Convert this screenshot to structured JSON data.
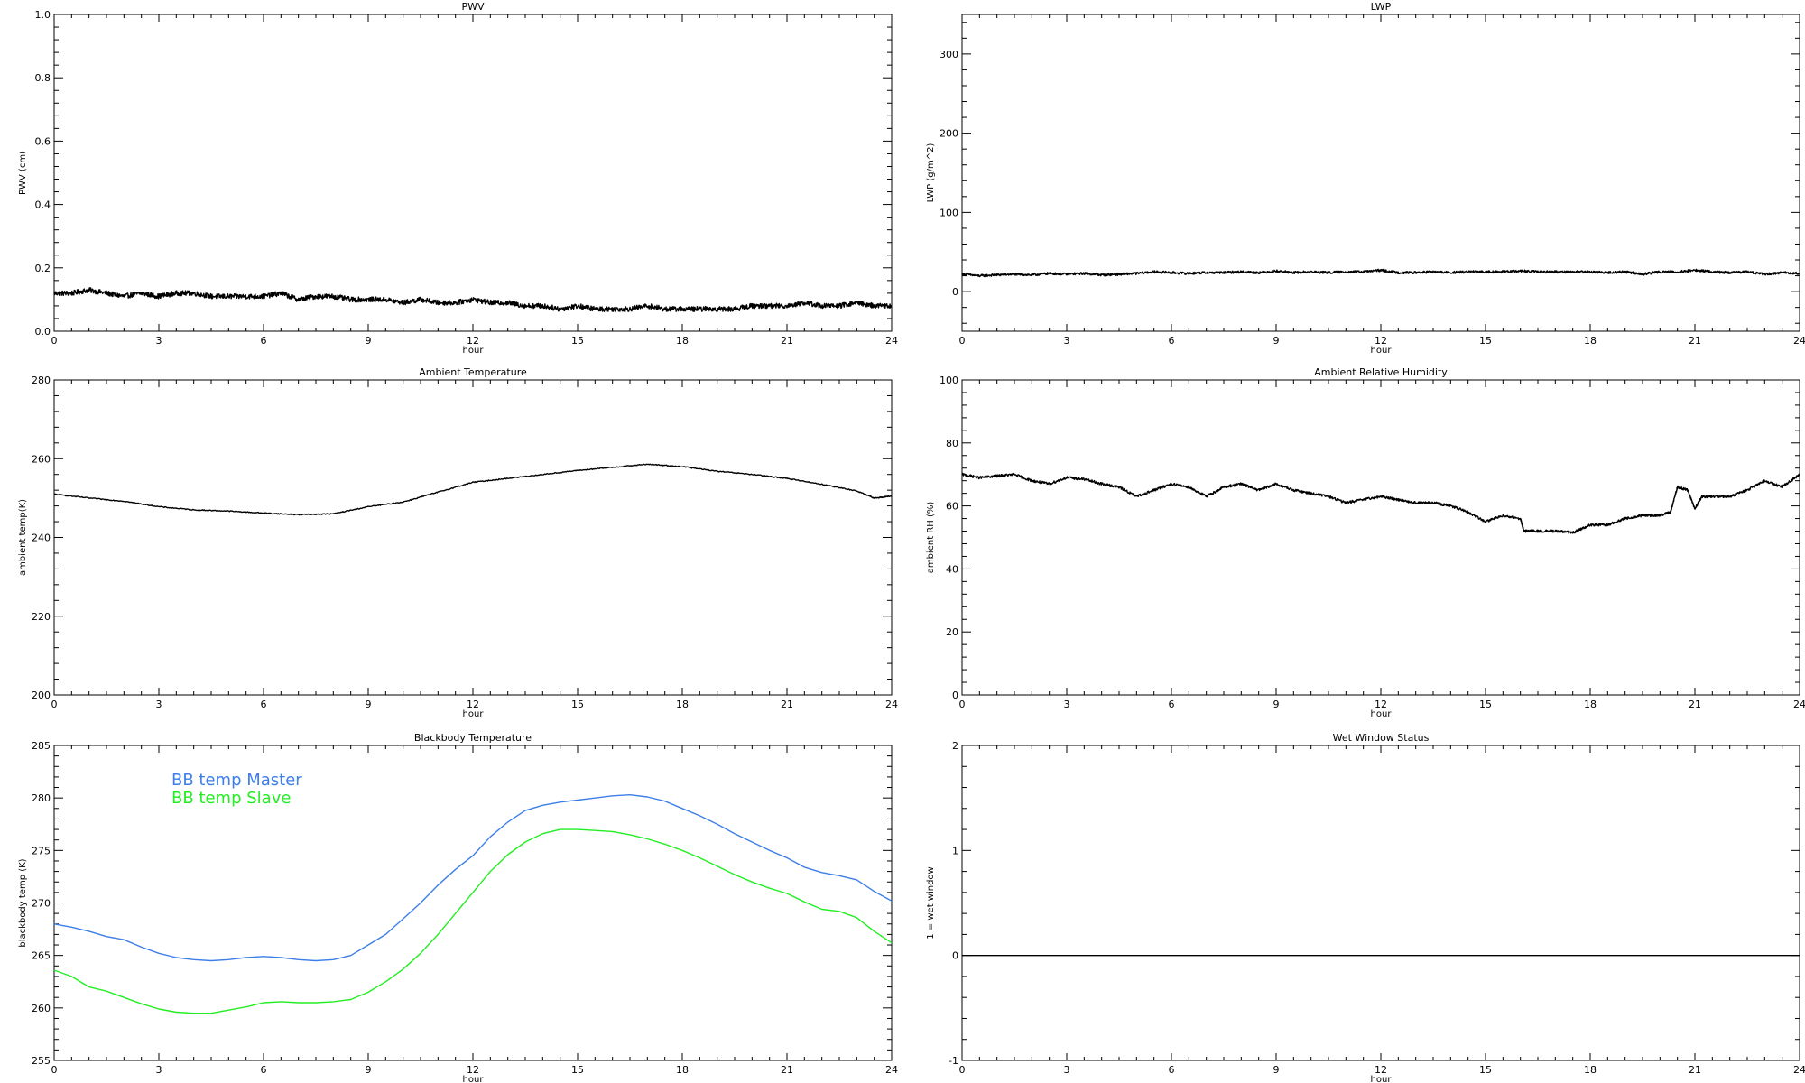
{
  "chart_data": [
    {
      "id": "pwv",
      "type": "line",
      "title": "PWV",
      "xlabel": "hour",
      "ylabel": "PWV (cm)",
      "xlim": [
        0,
        24
      ],
      "ylim": [
        0,
        1
      ],
      "xticks": [
        "0",
        "3",
        "6",
        "9",
        "12",
        "15",
        "18",
        "21",
        "24"
      ],
      "yticks": [
        "0.0",
        "0.2",
        "0.4",
        "0.6",
        "0.8",
        "1.0"
      ],
      "noise": 0.008,
      "series": [
        {
          "color": "#000000",
          "x": [
            0,
            0.5,
            1,
            1.5,
            2,
            2.5,
            3,
            3.5,
            4,
            4.5,
            5,
            5.5,
            6,
            6.5,
            7,
            7.5,
            8,
            8.5,
            9,
            9.5,
            10,
            10.5,
            11,
            11.5,
            12,
            12.5,
            13,
            13.5,
            14,
            14.5,
            15,
            15.5,
            16,
            16.5,
            17,
            17.5,
            18,
            18.5,
            19,
            19.5,
            20,
            20.5,
            21,
            21.5,
            22,
            22.5,
            23,
            23.5,
            24
          ],
          "y": [
            0.12,
            0.12,
            0.13,
            0.12,
            0.11,
            0.12,
            0.11,
            0.12,
            0.12,
            0.11,
            0.11,
            0.11,
            0.11,
            0.12,
            0.1,
            0.11,
            0.11,
            0.1,
            0.1,
            0.1,
            0.09,
            0.1,
            0.09,
            0.09,
            0.1,
            0.09,
            0.09,
            0.08,
            0.08,
            0.07,
            0.08,
            0.07,
            0.07,
            0.07,
            0.08,
            0.07,
            0.07,
            0.07,
            0.07,
            0.07,
            0.08,
            0.08,
            0.08,
            0.09,
            0.08,
            0.08,
            0.09,
            0.08,
            0.08
          ]
        }
      ]
    },
    {
      "id": "lwp",
      "type": "line",
      "title": "LWP",
      "xlabel": "hour",
      "ylabel": "LWP (g/m^2)",
      "xlim": [
        0,
        24
      ],
      "ylim": [
        -50,
        350
      ],
      "xticks": [
        "0",
        "3",
        "6",
        "9",
        "12",
        "15",
        "18",
        "21",
        "24"
      ],
      "yticks": [
        "0",
        "100",
        "200",
        "300"
      ],
      "noise": 1.5,
      "series": [
        {
          "color": "#000000",
          "x": [
            0,
            0.5,
            1,
            1.5,
            2,
            2.5,
            3,
            3.5,
            4,
            4.5,
            5,
            5.5,
            6,
            6.5,
            7,
            7.5,
            8,
            8.5,
            9,
            9.5,
            10,
            10.5,
            11,
            11.5,
            12,
            12.5,
            13,
            13.5,
            14,
            14.5,
            15,
            15.5,
            16,
            16.5,
            17,
            17.5,
            18,
            18.5,
            19,
            19.5,
            20,
            20.5,
            21,
            21.5,
            22,
            22.5,
            23,
            23.5,
            24
          ],
          "y": [
            22,
            20,
            21,
            22,
            21,
            23,
            22,
            23,
            21,
            22,
            23,
            25,
            24,
            23,
            24,
            24,
            25,
            24,
            26,
            24,
            25,
            24,
            25,
            25,
            27,
            24,
            24,
            25,
            24,
            25,
            25,
            25,
            26,
            25,
            25,
            25,
            25,
            24,
            25,
            22,
            25,
            25,
            27,
            25,
            24,
            25,
            22,
            24,
            23
          ]
        }
      ]
    },
    {
      "id": "ambient-temp",
      "type": "line",
      "title": "Ambient Temperature",
      "xlabel": "hour",
      "ylabel": "ambient temp(K)",
      "xlim": [
        0,
        24
      ],
      "ylim": [
        200,
        280
      ],
      "xticks": [
        "0",
        "3",
        "6",
        "9",
        "12",
        "15",
        "18",
        "21",
        "24"
      ],
      "yticks": [
        "200",
        "220",
        "240",
        "260",
        "280"
      ],
      "noise": 0.12,
      "series": [
        {
          "color": "#000000",
          "x": [
            0,
            1,
            2,
            3,
            4,
            5,
            6,
            7,
            8,
            9,
            10,
            11,
            12,
            13,
            14,
            15,
            16,
            17,
            18,
            19,
            20,
            21,
            22,
            23,
            23.5,
            24
          ],
          "y": [
            251,
            250,
            249.2,
            247.8,
            247,
            246.7,
            246.2,
            245.8,
            246,
            247.8,
            249,
            251.5,
            254,
            255,
            256,
            257,
            257.8,
            258.6,
            258,
            256.8,
            256,
            255,
            253.5,
            251.8,
            250,
            250.5
          ]
        }
      ]
    },
    {
      "id": "ambient-rh",
      "type": "line",
      "title": "Ambient Relative Humidity",
      "xlabel": "hour",
      "ylabel": "ambient RH (%)",
      "xlim": [
        0,
        24
      ],
      "ylim": [
        0,
        100
      ],
      "xticks": [
        "0",
        "3",
        "6",
        "9",
        "12",
        "15",
        "18",
        "21",
        "24"
      ],
      "yticks": [
        "0",
        "20",
        "40",
        "60",
        "80",
        "100"
      ],
      "noise": 0.4,
      "series": [
        {
          "color": "#000000",
          "x": [
            0,
            0.5,
            1,
            1.5,
            2,
            2.5,
            3,
            3.5,
            4,
            4.5,
            5,
            5.5,
            6,
            6.5,
            7,
            7.5,
            8,
            8.5,
            9,
            9.5,
            10,
            10.5,
            11,
            11.5,
            12,
            12.5,
            13,
            13.5,
            14,
            14.5,
            15,
            15.5,
            16,
            16.1,
            16.5,
            17,
            17.5,
            18,
            18.5,
            19,
            19.5,
            20,
            20.3,
            20.5,
            20.8,
            21,
            21.2,
            21.5,
            22,
            22.5,
            23,
            23.5,
            24
          ],
          "y": [
            70,
            69,
            69.5,
            70,
            68,
            67,
            69,
            68.5,
            67,
            66,
            63,
            65,
            67,
            66,
            63,
            66,
            67,
            65,
            67,
            65,
            64,
            63,
            61,
            62,
            63,
            62,
            61,
            61,
            60,
            58,
            55,
            57,
            56,
            52,
            52,
            52,
            51.5,
            54,
            54,
            56,
            57,
            57,
            58,
            66,
            65,
            59,
            63,
            63,
            63,
            65,
            68,
            66,
            70
          ]
        }
      ]
    },
    {
      "id": "blackbody-temp",
      "type": "line",
      "title": "Blackbody Temperature",
      "xlabel": "hour",
      "ylabel": "blackbody temp (K)",
      "xlim": [
        0,
        24
      ],
      "ylim": [
        255,
        285
      ],
      "xticks": [
        "0",
        "3",
        "6",
        "9",
        "12",
        "15",
        "18",
        "21",
        "24"
      ],
      "yticks": [
        "255",
        "260",
        "265",
        "270",
        "275",
        "280",
        "285"
      ],
      "noise": 0,
      "series": [
        {
          "name": "BB temp Master",
          "color": "#3d7ee8",
          "x": [
            0,
            0.5,
            1,
            1.5,
            2,
            2.5,
            3,
            3.5,
            4,
            4.5,
            5,
            5.5,
            6,
            6.5,
            7,
            7.5,
            8,
            8.5,
            9,
            9.5,
            10,
            10.5,
            11,
            11.5,
            12,
            12.5,
            13,
            13.5,
            14,
            14.5,
            15,
            15.5,
            16,
            16.5,
            17,
            17.5,
            18,
            18.5,
            19,
            19.5,
            20,
            20.5,
            21,
            21.5,
            22,
            22.5,
            23,
            23.5,
            24
          ],
          "y": [
            268,
            267.7,
            267.3,
            266.8,
            266.5,
            265.8,
            265.2,
            264.8,
            264.6,
            264.5,
            264.6,
            264.8,
            264.9,
            264.8,
            264.6,
            264.5,
            264.6,
            265,
            266,
            267,
            268.5,
            270,
            271.7,
            273.2,
            274.5,
            276.3,
            277.7,
            278.8,
            279.3,
            279.6,
            279.8,
            280,
            280.2,
            280.3,
            280.1,
            279.7,
            279,
            278.3,
            277.5,
            276.6,
            275.8,
            275,
            274.3,
            273.4,
            272.9,
            272.6,
            272.2,
            271.1,
            270.2
          ]
        },
        {
          "name": "BB temp Slave",
          "color": "#22ee22",
          "x": [
            0,
            0.5,
            1,
            1.5,
            2,
            2.5,
            3,
            3.5,
            4,
            4.5,
            5,
            5.5,
            6,
            6.5,
            7,
            7.5,
            8,
            8.5,
            9,
            9.5,
            10,
            10.5,
            11,
            11.5,
            12,
            12.5,
            13,
            13.5,
            14,
            14.5,
            15,
            15.5,
            16,
            16.5,
            17,
            17.5,
            18,
            18.5,
            19,
            19.5,
            20,
            20.5,
            21,
            21.5,
            22,
            22.5,
            23,
            23.5,
            24
          ],
          "y": [
            263.6,
            263,
            262,
            261.6,
            261,
            260.4,
            259.9,
            259.6,
            259.5,
            259.5,
            259.8,
            260.1,
            260.5,
            260.6,
            260.5,
            260.5,
            260.6,
            260.8,
            261.5,
            262.5,
            263.7,
            265.2,
            267,
            269,
            271,
            273,
            274.6,
            275.8,
            276.6,
            277,
            277,
            276.9,
            276.8,
            276.5,
            276.1,
            275.6,
            275,
            274.3,
            273.5,
            272.7,
            272,
            271.4,
            270.9,
            270.1,
            269.4,
            269.2,
            268.6,
            267.3,
            266.2
          ]
        }
      ]
    },
    {
      "id": "wet-window",
      "type": "line",
      "title": "Wet Window Status",
      "xlabel": "hour",
      "ylabel": "1 = wet window",
      "xlim": [
        0,
        24
      ],
      "ylim": [
        -1,
        2
      ],
      "xticks": [
        "0",
        "3",
        "6",
        "9",
        "12",
        "15",
        "18",
        "21",
        "24"
      ],
      "yticks": [
        "-1",
        "0",
        "1",
        "2"
      ],
      "noise": 0,
      "series": [
        {
          "color": "#000000",
          "x": [
            0,
            24
          ],
          "y": [
            0,
            0
          ]
        }
      ]
    }
  ]
}
